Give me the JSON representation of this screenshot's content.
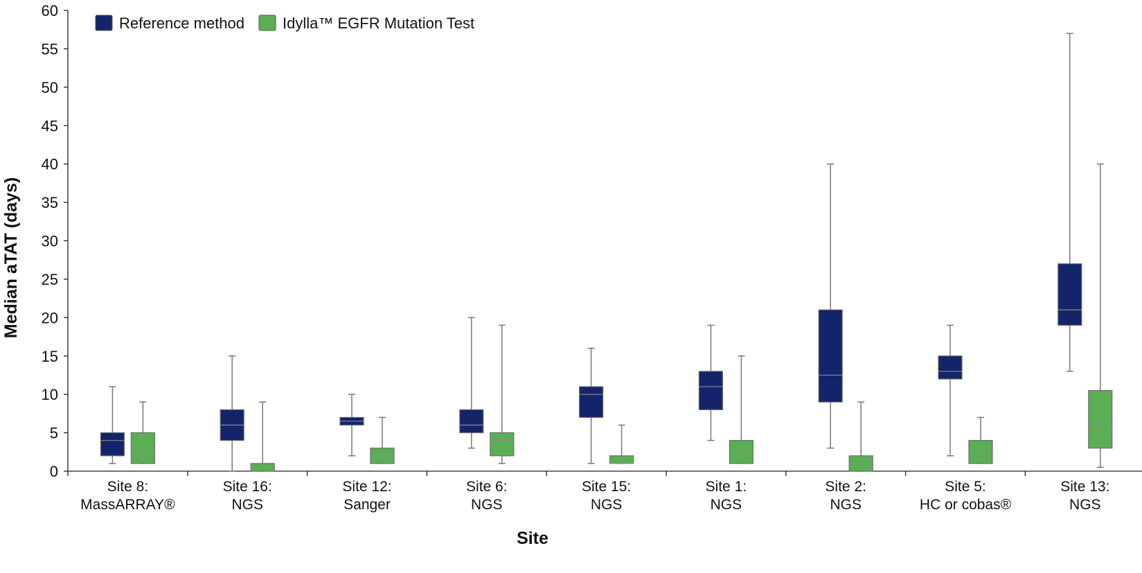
{
  "chart_data": {
    "type": "boxplot",
    "xlabel": "Site",
    "ylabel": "Median aTAT (days)",
    "ylim": [
      0,
      60
    ],
    "yticks": [
      0,
      5,
      10,
      15,
      20,
      25,
      30,
      35,
      40,
      45,
      50,
      55,
      60
    ],
    "grid": false,
    "legend_position": "top-left",
    "categories": [
      [
        "Site 8:",
        "MassARRAY®"
      ],
      [
        "Site 16:",
        "NGS"
      ],
      [
        "Site 12:",
        "Sanger"
      ],
      [
        "Site 6:",
        "NGS"
      ],
      [
        "Site 15:",
        "NGS"
      ],
      [
        "Site 1:",
        "NGS"
      ],
      [
        "Site 2:",
        "NGS"
      ],
      [
        "Site 5:",
        "HC or cobas®"
      ],
      [
        "Site 13:",
        "NGS"
      ]
    ],
    "series": [
      {
        "name": "Reference method",
        "color": "#14246a",
        "boxes": [
          {
            "min": 1,
            "q1": 2,
            "median": 4,
            "q3": 5,
            "max": 11
          },
          {
            "min": 0,
            "q1": 4,
            "median": 6,
            "q3": 8,
            "max": 15
          },
          {
            "min": 2,
            "q1": 6,
            "median": 6.5,
            "q3": 7,
            "max": 10
          },
          {
            "min": 3,
            "q1": 5,
            "median": 6,
            "q3": 8,
            "max": 20
          },
          {
            "min": 1,
            "q1": 7,
            "median": 10,
            "q3": 11,
            "max": 16
          },
          {
            "min": 4,
            "q1": 8,
            "median": 11,
            "q3": 13,
            "max": 19
          },
          {
            "min": 3,
            "q1": 9,
            "median": 12.5,
            "q3": 21,
            "max": 40
          },
          {
            "min": 2,
            "q1": 12,
            "median": 13,
            "q3": 15,
            "max": 19
          },
          {
            "min": 13,
            "q1": 19,
            "median": 21,
            "q3": 27,
            "max": 57
          }
        ]
      },
      {
        "name": "Idylla™ EGFR Mutation Test",
        "color": "#5aaf55",
        "boxes": [
          {
            "min": 1,
            "q1": 1,
            "median": 2,
            "q3": 5,
            "max": 9
          },
          {
            "min": 0,
            "q1": 0,
            "median": 0.5,
            "q3": 1,
            "max": 9
          },
          {
            "min": 1,
            "q1": 1,
            "median": 2,
            "q3": 3,
            "max": 7
          },
          {
            "min": 1,
            "q1": 2,
            "median": 4,
            "q3": 5,
            "max": 19
          },
          {
            "min": 1,
            "q1": 1,
            "median": 1,
            "q3": 2,
            "max": 6
          },
          {
            "min": 1,
            "q1": 1,
            "median": 2,
            "q3": 4,
            "max": 15
          },
          {
            "min": 0,
            "q1": 0,
            "median": 1,
            "q3": 2,
            "max": 9
          },
          {
            "min": 1,
            "q1": 1,
            "median": 2,
            "q3": 4,
            "max": 7
          },
          {
            "min": 0.5,
            "q1": 3,
            "median": 6,
            "q3": 10.5,
            "max": 40
          }
        ]
      }
    ]
  }
}
